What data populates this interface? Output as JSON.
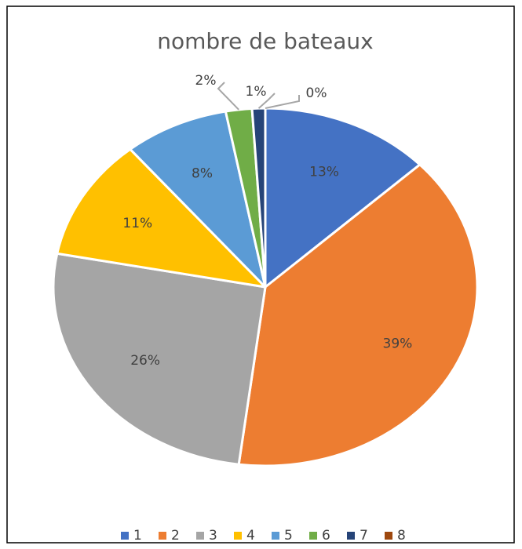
{
  "chart_data": {
    "type": "pie",
    "title": "nombre de bateaux",
    "categories": [
      "1",
      "2",
      "3",
      "4",
      "5",
      "6",
      "7",
      "8"
    ],
    "values": [
      13,
      39,
      26,
      11,
      8,
      2,
      1,
      0
    ],
    "value_labels": [
      "13%",
      "39%",
      "26%",
      "11%",
      "8%",
      "2%",
      "1%",
      "0%"
    ],
    "colors": [
      "#4472c4",
      "#ed7d31",
      "#a5a5a5",
      "#ffc000",
      "#5b9bd5",
      "#70ad47",
      "#264478",
      "#9e480e"
    ],
    "legend": "bottom"
  }
}
